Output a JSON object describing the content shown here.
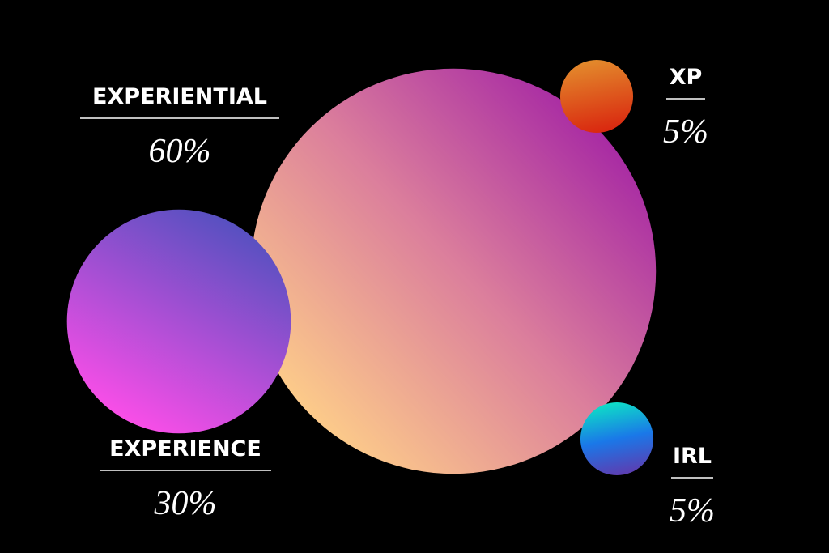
{
  "chart_data": {
    "type": "bubble",
    "categories": [
      "EXPERIENTIAL",
      "EXPERIENCE",
      "XP",
      "IRL"
    ],
    "values": [
      60,
      30,
      5,
      5
    ],
    "value_labels": [
      "60%",
      "30%",
      "5%",
      "5%"
    ]
  }
}
